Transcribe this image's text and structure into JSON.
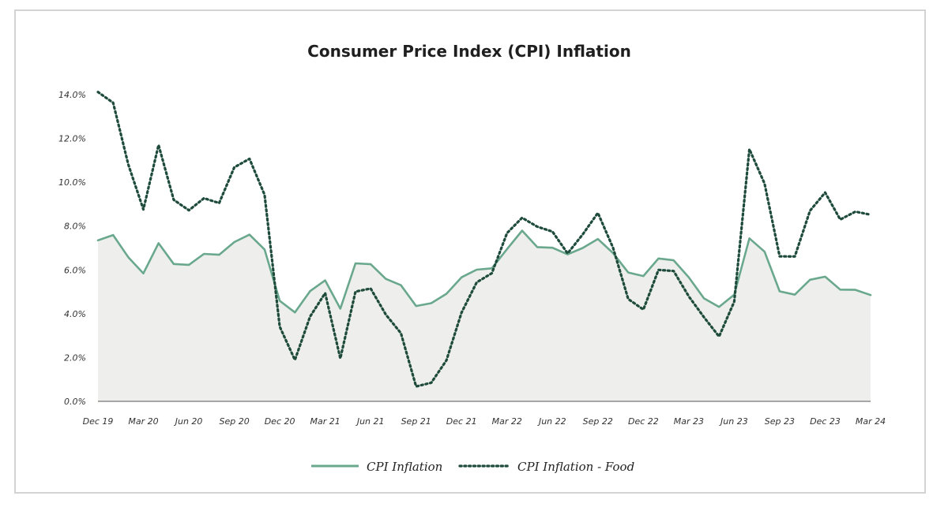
{
  "chart_data": {
    "type": "line",
    "title": "Consumer Price Index (CPI) Inflation",
    "xlabel": "",
    "ylabel": "",
    "ylim": [
      0,
      14
    ],
    "y_ticks": [
      "0.0%",
      "2.0%",
      "4.0%",
      "6.0%",
      "8.0%",
      "10.0%",
      "12.0%",
      "14.0%"
    ],
    "x_tick_labels": [
      "Dec 19",
      "Mar 20",
      "Jun 20",
      "Sep 20",
      "Dec 20",
      "Mar 21",
      "Jun 21",
      "Sep 21",
      "Dec 21",
      "Mar 22",
      "Jun 22",
      "Sep 22",
      "Dec 22",
      "Mar 23",
      "Jun 23",
      "Sep 23",
      "Dec 23",
      "Mar 24"
    ],
    "x_tick_index": [
      0,
      3,
      6,
      9,
      12,
      15,
      18,
      21,
      24,
      27,
      30,
      33,
      36,
      39,
      42,
      45,
      48,
      51
    ],
    "x": [
      "Dec 19",
      "Jan 20",
      "Feb 20",
      "Mar 20",
      "Apr 20",
      "May 20",
      "Jun 20",
      "Jul 20",
      "Aug 20",
      "Sep 20",
      "Oct 20",
      "Nov 20",
      "Dec 20",
      "Jan 21",
      "Feb 21",
      "Mar 21",
      "Apr 21",
      "May 21",
      "Jun 21",
      "Jul 21",
      "Aug 21",
      "Sep 21",
      "Oct 21",
      "Nov 21",
      "Dec 21",
      "Jan 22",
      "Feb 22",
      "Mar 22",
      "Apr 22",
      "May 22",
      "Jun 22",
      "Jul 22",
      "Aug 22",
      "Sep 22",
      "Oct 22",
      "Nov 22",
      "Dec 22",
      "Jan 23",
      "Feb 23",
      "Mar 23",
      "Apr 23",
      "May 23",
      "Jun 23",
      "Jul 23",
      "Aug 23",
      "Sep 23",
      "Oct 23",
      "Nov 23",
      "Dec 23",
      "Jan 24",
      "Feb 24",
      "Mar 24"
    ],
    "series": [
      {
        "name": "CPI Inflation",
        "style": "solid-area",
        "color": "#6aa88e",
        "fill": "#eeefec",
        "values": [
          7.35,
          7.59,
          6.58,
          5.84,
          7.22,
          6.27,
          6.23,
          6.73,
          6.69,
          7.27,
          7.61,
          6.93,
          4.59,
          4.06,
          5.03,
          5.52,
          4.23,
          6.3,
          6.26,
          5.59,
          5.3,
          4.35,
          4.48,
          4.91,
          5.66,
          6.01,
          6.07,
          6.95,
          7.79,
          7.04,
          7.01,
          6.71,
          7.0,
          7.41,
          6.77,
          5.88,
          5.72,
          6.52,
          6.44,
          5.66,
          4.7,
          4.31,
          4.87,
          7.44,
          6.83,
          5.02,
          4.87,
          5.55,
          5.69,
          5.1,
          5.09,
          4.85
        ]
      },
      {
        "name": "CPI Inflation - Food",
        "style": "dotted",
        "color": "#1e4b3c",
        "values": [
          14.12,
          13.63,
          10.81,
          8.76,
          11.7,
          9.2,
          8.72,
          9.27,
          9.05,
          10.68,
          11.07,
          9.43,
          3.41,
          1.89,
          3.87,
          4.94,
          1.96,
          5.01,
          5.15,
          3.96,
          3.11,
          0.68,
          0.85,
          1.87,
          4.05,
          5.43,
          5.85,
          7.68,
          8.38,
          7.97,
          7.75,
          6.75,
          7.62,
          8.6,
          7.01,
          4.67,
          4.19,
          6.0,
          5.95,
          4.79,
          3.84,
          2.96,
          4.55,
          11.51,
          9.94,
          6.62,
          6.61,
          8.7,
          9.53,
          8.3,
          8.66,
          8.52
        ]
      }
    ],
    "legend": {
      "placement": "bottom-center",
      "items": [
        {
          "label": "CPI Inflation",
          "style": "solid",
          "color": "#6aa88e"
        },
        {
          "label": "CPI Inflation - Food",
          "style": "dotted",
          "color": "#1e4b3c"
        }
      ]
    },
    "grid": false
  }
}
